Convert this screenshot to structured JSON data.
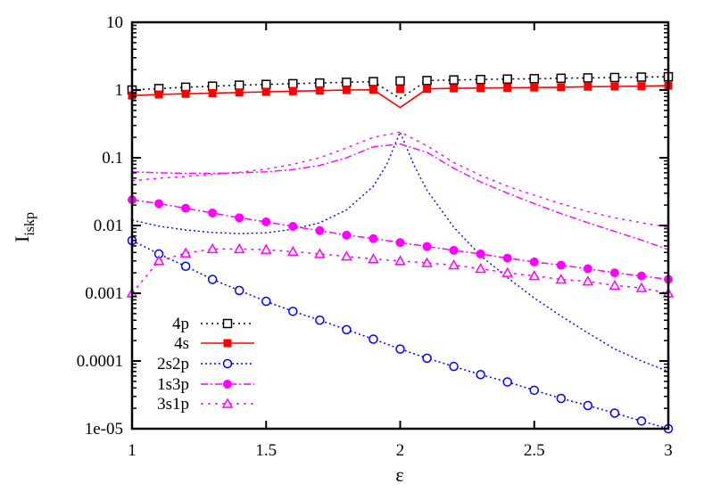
{
  "chart_data": {
    "type": "line",
    "title": "",
    "xlabel": "ε",
    "ylabel": "I",
    "ylabel_subscript": "iskp",
    "xlim": [
      1,
      3
    ],
    "ylim": [
      1e-05,
      10
    ],
    "yscale": "log",
    "grid": false,
    "legend_position": "lower left",
    "x_ticks": [
      1,
      1.5,
      2,
      2.5,
      3
    ],
    "x_tick_labels": [
      "1",
      "1.5",
      "2",
      "2.5",
      "3"
    ],
    "y_ticks": [
      10,
      1,
      0.1,
      0.01,
      0.001,
      0.0001,
      1e-05
    ],
    "y_tick_labels": [
      "10",
      "1",
      "0.1",
      "0.01",
      "0.001",
      "0.0001",
      "1e-05"
    ],
    "x": [
      1.0,
      1.1,
      1.2,
      1.3,
      1.4,
      1.5,
      1.6,
      1.7,
      1.8,
      1.9,
      2.0,
      2.1,
      2.2,
      2.3,
      2.4,
      2.5,
      2.6,
      2.7,
      2.8,
      2.9,
      3.0
    ],
    "series": [
      {
        "name": "4p",
        "color": "#000000",
        "dash": "2,4",
        "marker": "open-square",
        "values": [
          1.0,
          1.05,
          1.1,
          1.14,
          1.18,
          1.21,
          1.24,
          1.27,
          1.3,
          1.33,
          1.36,
          1.38,
          1.41,
          1.43,
          1.45,
          1.47,
          1.49,
          1.51,
          1.53,
          1.55,
          1.57
        ],
        "line_values": [
          1.0,
          1.05,
          1.1,
          1.14,
          1.18,
          1.21,
          1.24,
          1.27,
          1.3,
          1.33,
          0.75,
          1.38,
          1.41,
          1.43,
          1.45,
          1.47,
          1.49,
          1.51,
          1.53,
          1.55,
          1.57
        ]
      },
      {
        "name": "4s",
        "color": "#ff0000",
        "dash": "",
        "marker": "filled-square",
        "values": [
          0.83,
          0.86,
          0.88,
          0.9,
          0.92,
          0.94,
          0.96,
          0.98,
          1.0,
          1.01,
          1.03,
          1.04,
          1.06,
          1.07,
          1.08,
          1.09,
          1.1,
          1.12,
          1.13,
          1.14,
          1.16
        ],
        "line_values": [
          0.83,
          0.86,
          0.88,
          0.9,
          0.92,
          0.94,
          0.96,
          0.98,
          1.0,
          1.01,
          0.55,
          1.04,
          1.06,
          1.07,
          1.08,
          1.09,
          1.1,
          1.12,
          1.13,
          1.14,
          1.16
        ]
      },
      {
        "name": "2s2p",
        "color": "#0000ff",
        "dash": "2,3",
        "marker": "open-circle",
        "values": [
          0.006,
          0.0038,
          0.0025,
          0.0016,
          0.0011,
          0.00076,
          0.00054,
          0.0004,
          0.00029,
          0.00021,
          0.00015,
          0.00011,
          8.3e-05,
          6.3e-05,
          4.9e-05,
          3.7e-05,
          2.8e-05,
          2.2e-05,
          1.7e-05,
          1.3e-05,
          1e-05
        ]
      },
      {
        "name": "1s3p",
        "color": "#ff00ff",
        "dash": "8,3,2,3",
        "marker": "filled-circle",
        "values": [
          0.024,
          0.021,
          0.018,
          0.0153,
          0.013,
          0.0113,
          0.0097,
          0.0084,
          0.0072,
          0.0064,
          0.0056,
          0.0049,
          0.0043,
          0.0038,
          0.0033,
          0.0029,
          0.0026,
          0.0023,
          0.002,
          0.0018,
          0.0016
        ]
      },
      {
        "name": "3s1p",
        "color": "#ff00ff",
        "dash": "3,5",
        "marker": "open-triangle",
        "values": [
          0.001,
          0.003,
          0.0039,
          0.0045,
          0.0045,
          0.0044,
          0.0041,
          0.0038,
          0.0035,
          0.0032,
          0.003,
          0.0028,
          0.0026,
          0.0023,
          0.002,
          0.0018,
          0.0016,
          0.0015,
          0.0013,
          0.0012,
          0.001
        ]
      }
    ],
    "unmarked_curves": [
      {
        "name": "2s2p-unmarked",
        "color": "#0000ff",
        "dash": "2,3",
        "x": [
          1.0,
          1.1,
          1.2,
          1.3,
          1.4,
          1.5,
          1.6,
          1.7,
          1.8,
          1.9,
          1.95,
          2.0,
          2.05,
          2.1,
          2.2,
          2.3,
          2.4,
          2.5,
          2.6,
          2.7,
          2.8,
          2.9,
          3.0
        ],
        "values": [
          0.012,
          0.0098,
          0.0086,
          0.0079,
          0.0076,
          0.0078,
          0.0088,
          0.011,
          0.017,
          0.038,
          0.08,
          0.24,
          0.08,
          0.033,
          0.0094,
          0.0036,
          0.0017,
          0.00085,
          0.00046,
          0.00026,
          0.00015,
          0.0001,
          7e-05
        ]
      },
      {
        "name": "1s3p-unmarked",
        "color": "#ff00ff",
        "dash": "8,3,2,3",
        "x": [
          1.0,
          1.1,
          1.2,
          1.3,
          1.4,
          1.5,
          1.6,
          1.7,
          1.8,
          1.9,
          2.0,
          2.1,
          2.2,
          2.3,
          2.4,
          2.5,
          2.6,
          2.7,
          2.8,
          2.9,
          3.0
        ],
        "values": [
          0.062,
          0.06,
          0.059,
          0.059,
          0.06,
          0.062,
          0.067,
          0.077,
          0.1,
          0.145,
          0.16,
          0.12,
          0.07,
          0.044,
          0.03,
          0.021,
          0.015,
          0.011,
          0.0082,
          0.0061,
          0.0044
        ]
      },
      {
        "name": "3s1p-unmarked",
        "color": "#ff00ff",
        "dash": "3,5",
        "x": [
          1.0,
          1.1,
          1.2,
          1.3,
          1.4,
          1.5,
          1.6,
          1.7,
          1.8,
          1.9,
          2.0,
          2.1,
          2.2,
          2.3,
          2.4,
          2.5,
          2.6,
          2.7,
          2.8,
          2.9,
          3.0
        ],
        "values": [
          0.046,
          0.05,
          0.053,
          0.057,
          0.061,
          0.068,
          0.08,
          0.1,
          0.14,
          0.2,
          0.24,
          0.15,
          0.085,
          0.055,
          0.038,
          0.028,
          0.021,
          0.016,
          0.013,
          0.011,
          0.0094
        ]
      }
    ]
  }
}
